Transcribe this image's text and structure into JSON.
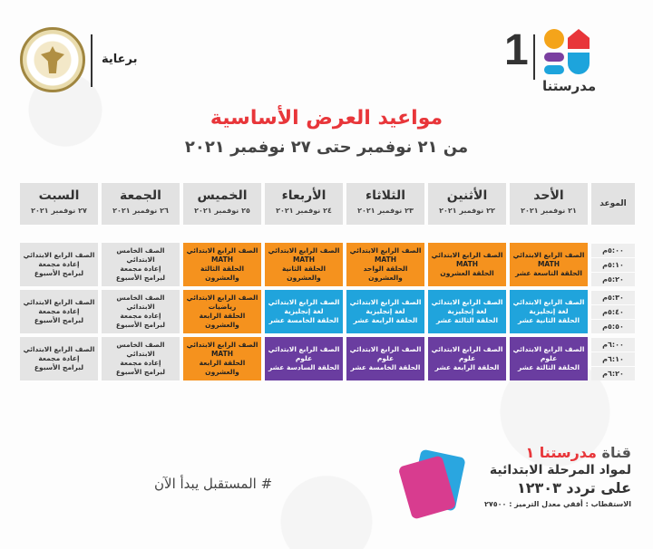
{
  "header": {
    "sponsor": "برعاية",
    "logo_number": "1",
    "logo_name": "مدرستنا"
  },
  "title": "مواعيد العرض الأساسية",
  "subtitle": "من ٢١ نوفمبر حتى ٢٧ نوفمبر ٢٠٢١",
  "time_header": "الموعد",
  "days": [
    {
      "name": "الأحد",
      "date": "٢١ نوفمبر ٢٠٢١"
    },
    {
      "name": "الأثنين",
      "date": "٢٢ نوفمبر ٢٠٢١"
    },
    {
      "name": "الثلاثاء",
      "date": "٢٣ نوفمبر ٢٠٢١"
    },
    {
      "name": "الأربعاء",
      "date": "٢٤ نوفمبر ٢٠٢١"
    },
    {
      "name": "الخميس",
      "date": "٢٥ نوفمبر ٢٠٢١"
    },
    {
      "name": "الجمعة",
      "date": "٢٦ نوفمبر ٢٠٢١"
    },
    {
      "name": "السبت",
      "date": "٢٧ نوفمبر ٢٠٢١"
    }
  ],
  "times": [
    "٥:٠٠م",
    "٥:١٠م",
    "٥:٢٠م",
    "٥:٣٠م",
    "٥:٤٠م",
    "٥:٥٠م",
    "٦:٠٠م",
    "٦:١٠م",
    "٦:٢٠م"
  ],
  "blocks": [
    [
      {
        "color": "orange",
        "lines": [
          "الصف الرابع الابتدائي",
          "MATH",
          "الحلقة التاسعة عشر"
        ]
      },
      {
        "color": "orange",
        "lines": [
          "الصف الرابع الابتدائي",
          "MATH",
          "الحلقة العشرون"
        ]
      },
      {
        "color": "orange",
        "lines": [
          "الصف الرابع الابتدائي",
          "MATH",
          "الحلقة الواحد والعشرون"
        ]
      },
      {
        "color": "orange",
        "lines": [
          "الصف الرابع الابتدائي",
          "MATH",
          "الحلقة الثانية والعشرون"
        ]
      },
      {
        "color": "orange",
        "lines": [
          "الصف الرابع الابتدائي",
          "MATH",
          "الحلقة الثالثة والعشرون"
        ]
      },
      {
        "color": "grey",
        "lines": [
          "الصف الخامس الابتدائي",
          "إعادة مجمعة",
          "لبرامج الأسبوع"
        ]
      },
      {
        "color": "grey",
        "lines": [
          "الصف الرابع الابتدائي",
          "إعادة مجمعة",
          "لبرامج الأسبوع"
        ]
      }
    ],
    [
      {
        "color": "blue",
        "lines": [
          "الصف الرابع الابتدائي",
          "لغة إنجليزية",
          "الحلقة الثانية عشر"
        ]
      },
      {
        "color": "blue",
        "lines": [
          "الصف الرابع الابتدائي",
          "لغة إنجليزية",
          "الحلقة الثالثة عشر"
        ]
      },
      {
        "color": "blue",
        "lines": [
          "الصف الرابع الابتدائي",
          "لغة إنجليزية",
          "الحلقة الرابعة عشر"
        ]
      },
      {
        "color": "blue",
        "lines": [
          "الصف الرابع الابتدائي",
          "لغة إنجليزية",
          "الحلقة الخامسة عشر"
        ]
      },
      {
        "color": "orange",
        "lines": [
          "الصف الرابع الابتدائي",
          "رياضيات",
          "الحلقة الرابعة والعشرون"
        ]
      },
      {
        "color": "grey",
        "lines": [
          "الصف الخامس الابتدائي",
          "إعادة مجمعة",
          "لبرامج الأسبوع"
        ]
      },
      {
        "color": "grey",
        "lines": [
          "الصف الرابع الابتدائي",
          "إعادة مجمعة",
          "لبرامج الأسبوع"
        ]
      }
    ],
    [
      {
        "color": "purple",
        "lines": [
          "الصف الرابع الابتدائي",
          "علوم",
          "الحلقة الثالثة عشر"
        ]
      },
      {
        "color": "purple",
        "lines": [
          "الصف الرابع الابتدائي",
          "علوم",
          "الحلقة الرابعة عشر"
        ]
      },
      {
        "color": "purple",
        "lines": [
          "الصف الرابع الابتدائي",
          "علوم",
          "الحلقة الخامسة عشر"
        ]
      },
      {
        "color": "purple",
        "lines": [
          "الصف الرابع الابتدائي",
          "علوم",
          "الحلقة السادسة عشر"
        ]
      },
      {
        "color": "orange",
        "lines": [
          "الصف الرابع الابتدائي",
          "MATH",
          "الحلقة الرابعة والعشرون"
        ]
      },
      {
        "color": "grey",
        "lines": [
          "الصف الخامس الابتدائي",
          "إعادة مجمعة",
          "لبرامج الأسبوع"
        ]
      },
      {
        "color": "grey",
        "lines": [
          "الصف الرابع الابتدائي",
          "إعادة مجمعة",
          "لبرامج الأسبوع"
        ]
      }
    ]
  ],
  "footer": {
    "slogan": "# المستقبل يبدأ الآن",
    "channel_prefix": "قناة",
    "channel_name": "مدرستنا ١",
    "channel_sub": "لمواد المرحلة الابتدائية",
    "channel_freq": "على تردد ١٢٣٠٣",
    "channel_extra": "الاستقطاب : أفقي معدل الترميز : ٢٧٥٠٠"
  },
  "colors": {
    "orange": "#f5921e",
    "blue": "#20a4dc",
    "purple": "#6a3da0",
    "grey": "#e4e4e4",
    "title_red": "#e8363a"
  }
}
